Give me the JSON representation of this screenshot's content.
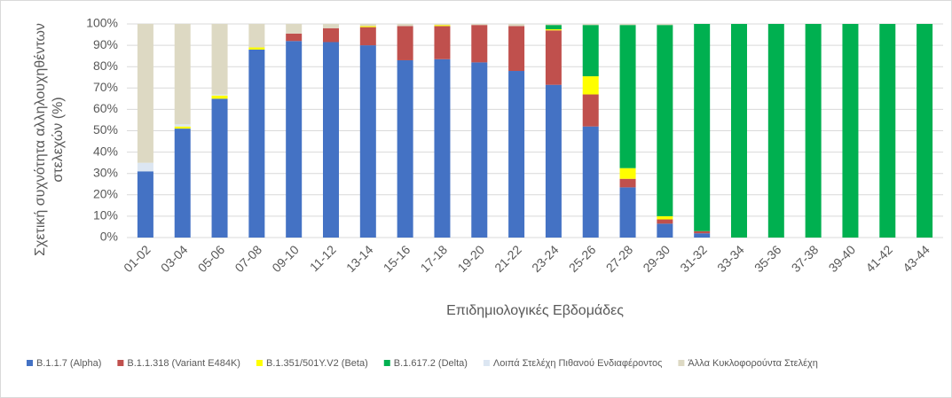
{
  "chart_data": {
    "type": "stacked_bar",
    "x_label": "Επιδημιολογικές Εβδομάδες",
    "y_label_lines": [
      "Σχετική συχνότητα αλληλουχηθέντων",
      "στελεχών (%)"
    ],
    "categories": [
      "01-02",
      "03-04",
      "05-06",
      "07-08",
      "09-10",
      "11-12",
      "13-14",
      "15-16",
      "17-18",
      "19-20",
      "21-22",
      "23-24",
      "25-26",
      "27-28",
      "29-30",
      "31-32",
      "33-34",
      "35-36",
      "37-38",
      "39-40",
      "41-42",
      "43-44"
    ],
    "series": [
      {
        "name": "B.1.1.7 (Alpha)",
        "color": "#4472c4",
        "values": [
          31,
          51,
          65,
          88,
          92,
          91.5,
          90,
          83,
          83.5,
          82,
          78,
          71.5,
          52,
          23.5,
          6.5,
          2,
          0,
          0,
          0,
          0,
          0,
          0
        ]
      },
      {
        "name": "B.1.1.318 (Variant E484K)",
        "color": "#c0504d",
        "values": [
          0,
          0,
          0,
          0,
          3.5,
          6.5,
          8.5,
          16,
          15.5,
          17.5,
          21,
          25.5,
          15,
          4,
          2,
          1,
          0,
          0,
          0,
          0,
          0,
          0
        ]
      },
      {
        "name": "B.1.351/501Y.V2 (Beta)",
        "color": "#ffff00",
        "values": [
          0,
          1,
          1.5,
          1,
          0,
          0,
          0.5,
          0,
          0.5,
          0,
          0,
          0.5,
          8.5,
          5,
          1.5,
          0,
          0,
          0,
          0,
          0,
          0,
          0
        ]
      },
      {
        "name": "B.1.617.2 (Delta)",
        "color": "#00b050",
        "values": [
          0,
          0,
          0,
          0,
          0,
          0,
          0,
          0,
          0,
          0,
          0,
          2,
          24,
          67,
          89.5,
          97,
          100,
          100,
          100,
          100,
          100,
          100
        ]
      },
      {
        "name": "Λοιπά Στελέχη Πιθανού Ενδιαφέροντος",
        "color": "#dce6f2",
        "values": [
          4,
          1,
          0.5,
          0,
          0,
          0,
          0,
          0,
          0,
          0,
          0,
          0,
          0,
          0,
          0,
          0,
          0,
          0,
          0,
          0,
          0,
          0
        ]
      },
      {
        "name": "Άλλα Κυκλοφορούντα Στελέχη",
        "color": "#ddd9c3",
        "values": [
          65,
          47,
          33,
          11,
          4.5,
          2,
          1,
          1,
          0.5,
          0.5,
          1,
          0.5,
          0.5,
          0.5,
          0.5,
          0,
          0,
          0,
          0,
          0,
          0,
          0
        ]
      }
    ],
    "ylim": [
      0,
      100
    ],
    "yticks": [
      {
        "value": 0,
        "label": "0%"
      },
      {
        "value": 10,
        "label": "10%"
      },
      {
        "value": 20,
        "label": "20%"
      },
      {
        "value": 30,
        "label": "30%"
      },
      {
        "value": 40,
        "label": "40%"
      },
      {
        "value": 50,
        "label": "50%"
      },
      {
        "value": 60,
        "label": "60%"
      },
      {
        "value": 70,
        "label": "70%"
      },
      {
        "value": 80,
        "label": "80%"
      },
      {
        "value": 90,
        "label": "90%"
      },
      {
        "value": 100,
        "label": "100%"
      }
    ],
    "grid": true
  }
}
